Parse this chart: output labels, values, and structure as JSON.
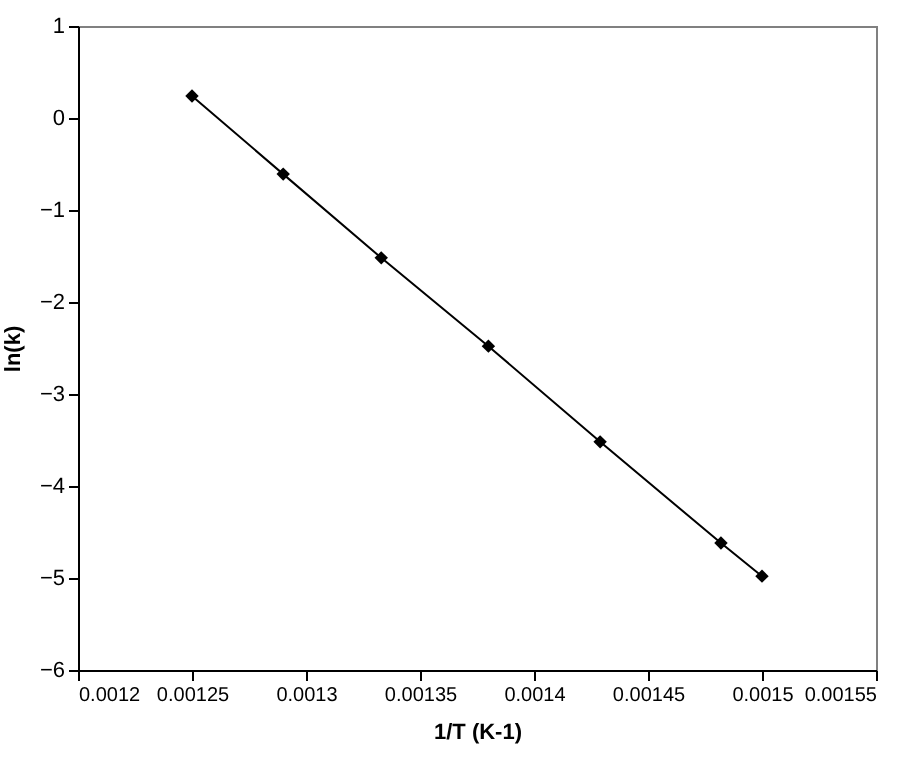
{
  "chart_data": {
    "type": "line",
    "xlabel": "1/T (K-1)",
    "ylabel": "ln(k)",
    "x": [
      0.00125,
      0.00129,
      0.001333,
      0.00138,
      0.001429,
      0.001482,
      0.0015
    ],
    "series": [
      {
        "color": "#000000",
        "values": [
          0.24,
          -0.61,
          -1.52,
          -2.48,
          -3.52,
          -4.62,
          -4.98
        ]
      }
    ],
    "xlim": [
      0.0012,
      0.00155
    ],
    "xticks": [
      0.0012,
      0.00125,
      0.0013,
      0.00135,
      0.0014,
      0.00145,
      0.0015,
      0.00155
    ],
    "ylim": [
      -6,
      1
    ],
    "yticks": [
      -6,
      -5,
      -4,
      -3,
      -2,
      -1,
      0,
      1
    ],
    "marker": "diamond",
    "grid": false
  }
}
